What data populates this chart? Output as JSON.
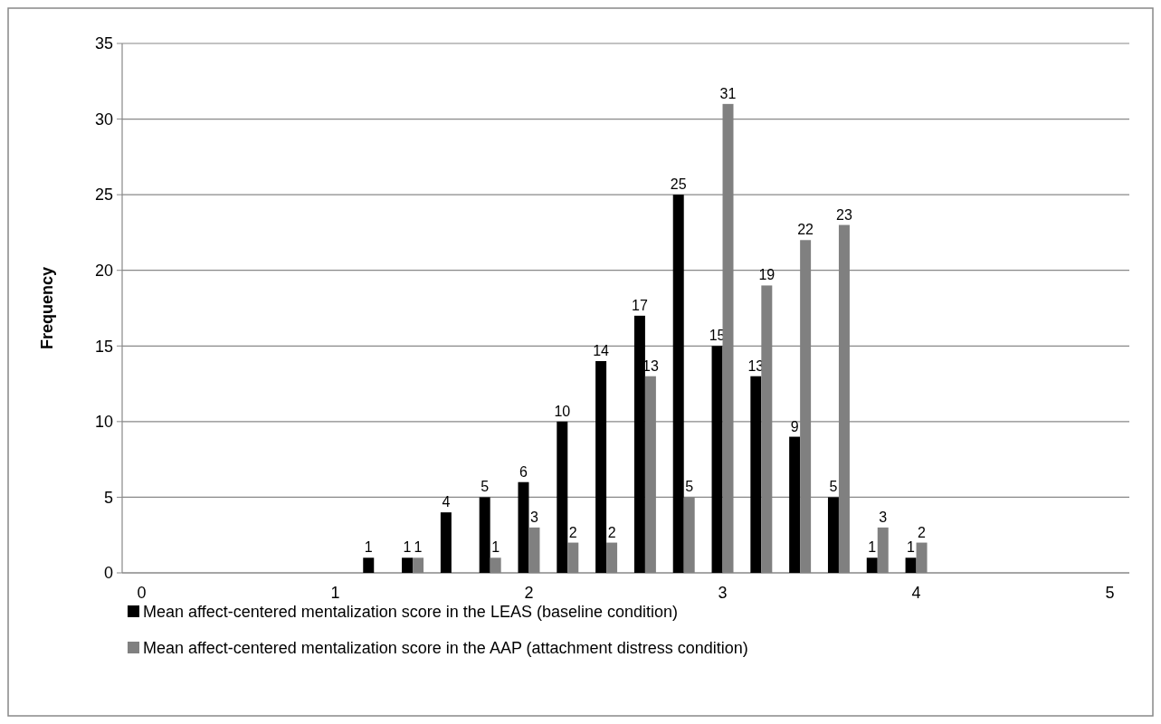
{
  "chart_data": {
    "type": "bar",
    "ylabel": "Frequency",
    "x": [
      1.2,
      1.4,
      1.6,
      1.8,
      2.0,
      2.2,
      2.4,
      2.6,
      2.8,
      3.0,
      3.2,
      3.4,
      3.6,
      3.8,
      4.0
    ],
    "series": [
      {
        "name": "Mean affect-centered mentalization score in the LEAS (baseline condition)",
        "color": "#000000",
        "values": [
          1,
          1,
          4,
          5,
          6,
          10,
          14,
          17,
          25,
          15,
          13,
          9,
          5,
          1,
          1
        ]
      },
      {
        "name": "Mean affect-centered mentalization score in the AAP (attachment distress condition)",
        "color": "#808080",
        "values": [
          null,
          1,
          null,
          1,
          3,
          2,
          2,
          13,
          5,
          31,
          19,
          22,
          23,
          3,
          2
        ]
      }
    ],
    "xlim": [
      -0.1,
      5.1
    ],
    "xticks": [
      0,
      1,
      2,
      3,
      4,
      5
    ],
    "ylim": [
      0,
      35
    ],
    "yticks": [
      0,
      5,
      10,
      15,
      20,
      25,
      30,
      35
    ],
    "grid": "y",
    "legend": "bottom",
    "data_labels": true
  }
}
